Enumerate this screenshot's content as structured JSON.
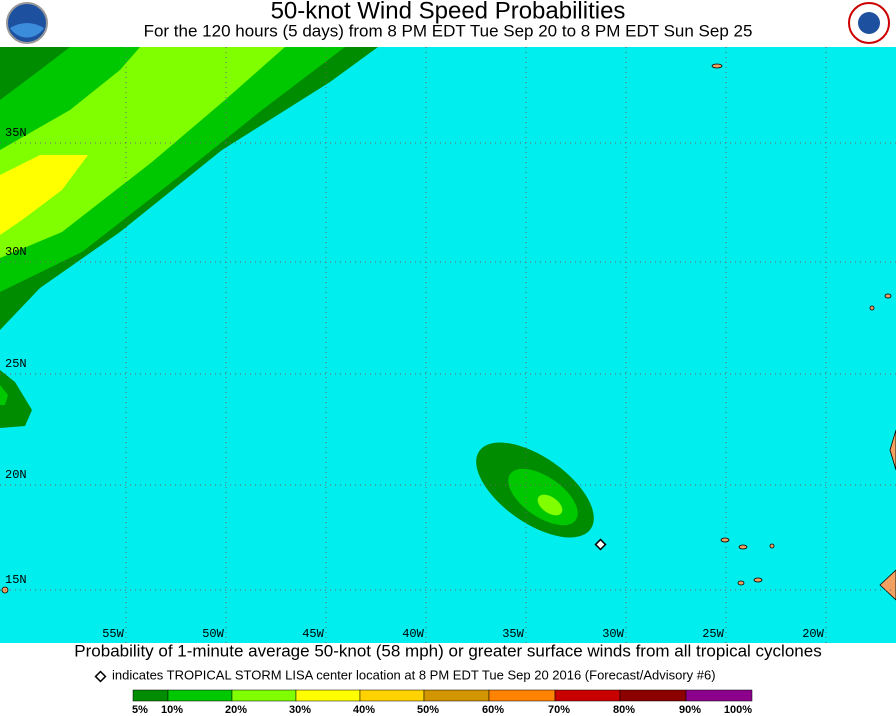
{
  "header": {
    "title": "50-knot Wind Speed Probabilities",
    "subtitle": "For the 120 hours (5 days) from 8 PM EDT Tue Sep 20 to 8 PM EDT Sun Sep 25"
  },
  "map": {
    "lat_labels": [
      "35N",
      "30N",
      "25N",
      "20N",
      "15N"
    ],
    "lon_labels": [
      "55W",
      "50W",
      "45W",
      "40W",
      "35W",
      "30W",
      "25W",
      "20W"
    ]
  },
  "caption": "Probability of 1-minute average 50-knot (58 mph) or greater surface winds from all tropical cyclones",
  "note": "indicates TROPICAL STORM LISA center location at 8 PM EDT Tue Sep 20 2016 (Forecast/Advisory #6)",
  "legend": {
    "labels": [
      "5%",
      "10%",
      "20%",
      "30%",
      "40%",
      "50%",
      "60%",
      "70%",
      "80%",
      "90%",
      "100%"
    ],
    "colors": [
      "#008c00",
      "#00c800",
      "#80ff00",
      "#ffff00",
      "#ffd200",
      "#d29600",
      "#ff8200",
      "#c80000",
      "#8c0000",
      "#8c008c"
    ]
  }
}
